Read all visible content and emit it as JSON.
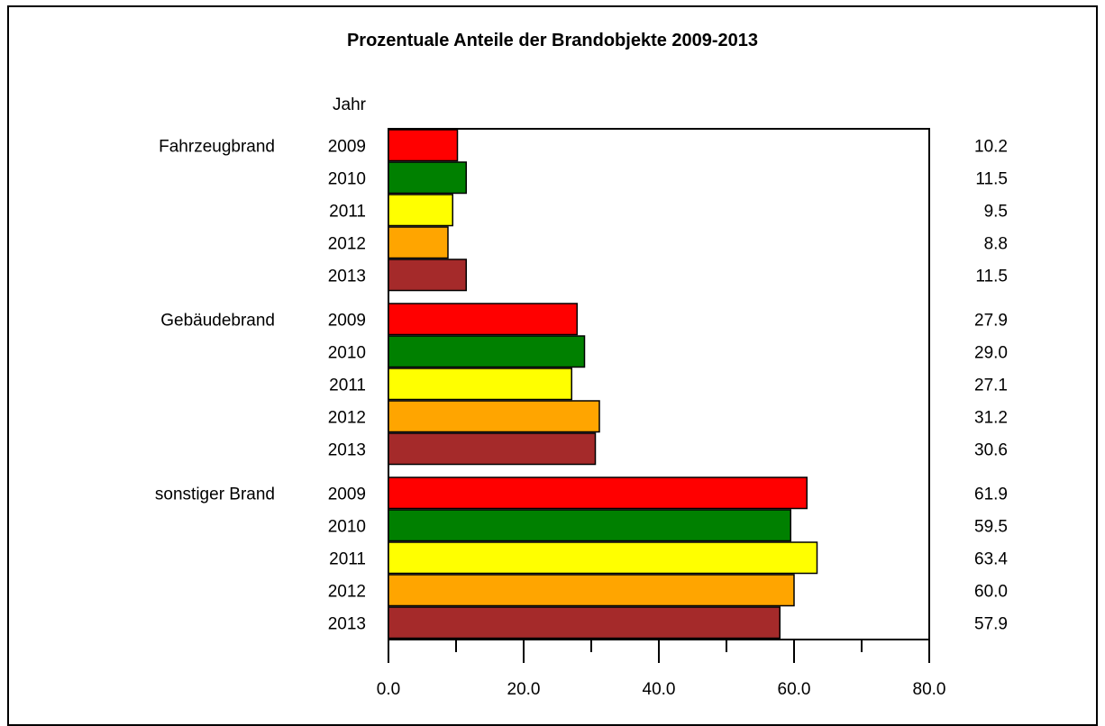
{
  "chart_data": {
    "type": "bar",
    "orientation": "horizontal",
    "title": "Prozentuale Anteile der Brandobjekte 2009-2013",
    "year_header": "Jahr",
    "categories": [
      "Fahrzeugbrand",
      "Gebäudebrand",
      "sonstiger Brand"
    ],
    "series": [
      {
        "name": "2009",
        "color": "#ff0000",
        "values": [
          10.2,
          27.9,
          61.9
        ],
        "labels": [
          "10.2",
          "27.9",
          "61.9"
        ]
      },
      {
        "name": "2010",
        "color": "#008000",
        "values": [
          11.5,
          29.0,
          59.5
        ],
        "labels": [
          "11.5",
          "29.0",
          "59.5"
        ]
      },
      {
        "name": "2011",
        "color": "#ffff00",
        "values": [
          9.5,
          27.1,
          63.4
        ],
        "labels": [
          "9.5",
          "27.1",
          "63.4"
        ]
      },
      {
        "name": "2012",
        "color": "#ffa500",
        "values": [
          8.8,
          31.2,
          60.0
        ],
        "labels": [
          "8.8",
          "31.2",
          "60.0"
        ]
      },
      {
        "name": "2013",
        "color": "#a52a2a",
        "values": [
          11.5,
          30.6,
          57.9
        ],
        "labels": [
          "11.5",
          "30.6",
          "57.9"
        ]
      }
    ],
    "xlim": [
      0,
      80
    ],
    "xticks": [
      0,
      20,
      40,
      60,
      80
    ],
    "xtick_labels": [
      "0.0",
      "20.0",
      "40.0",
      "60.0",
      "80.0"
    ],
    "grid": false,
    "legend": "none"
  }
}
